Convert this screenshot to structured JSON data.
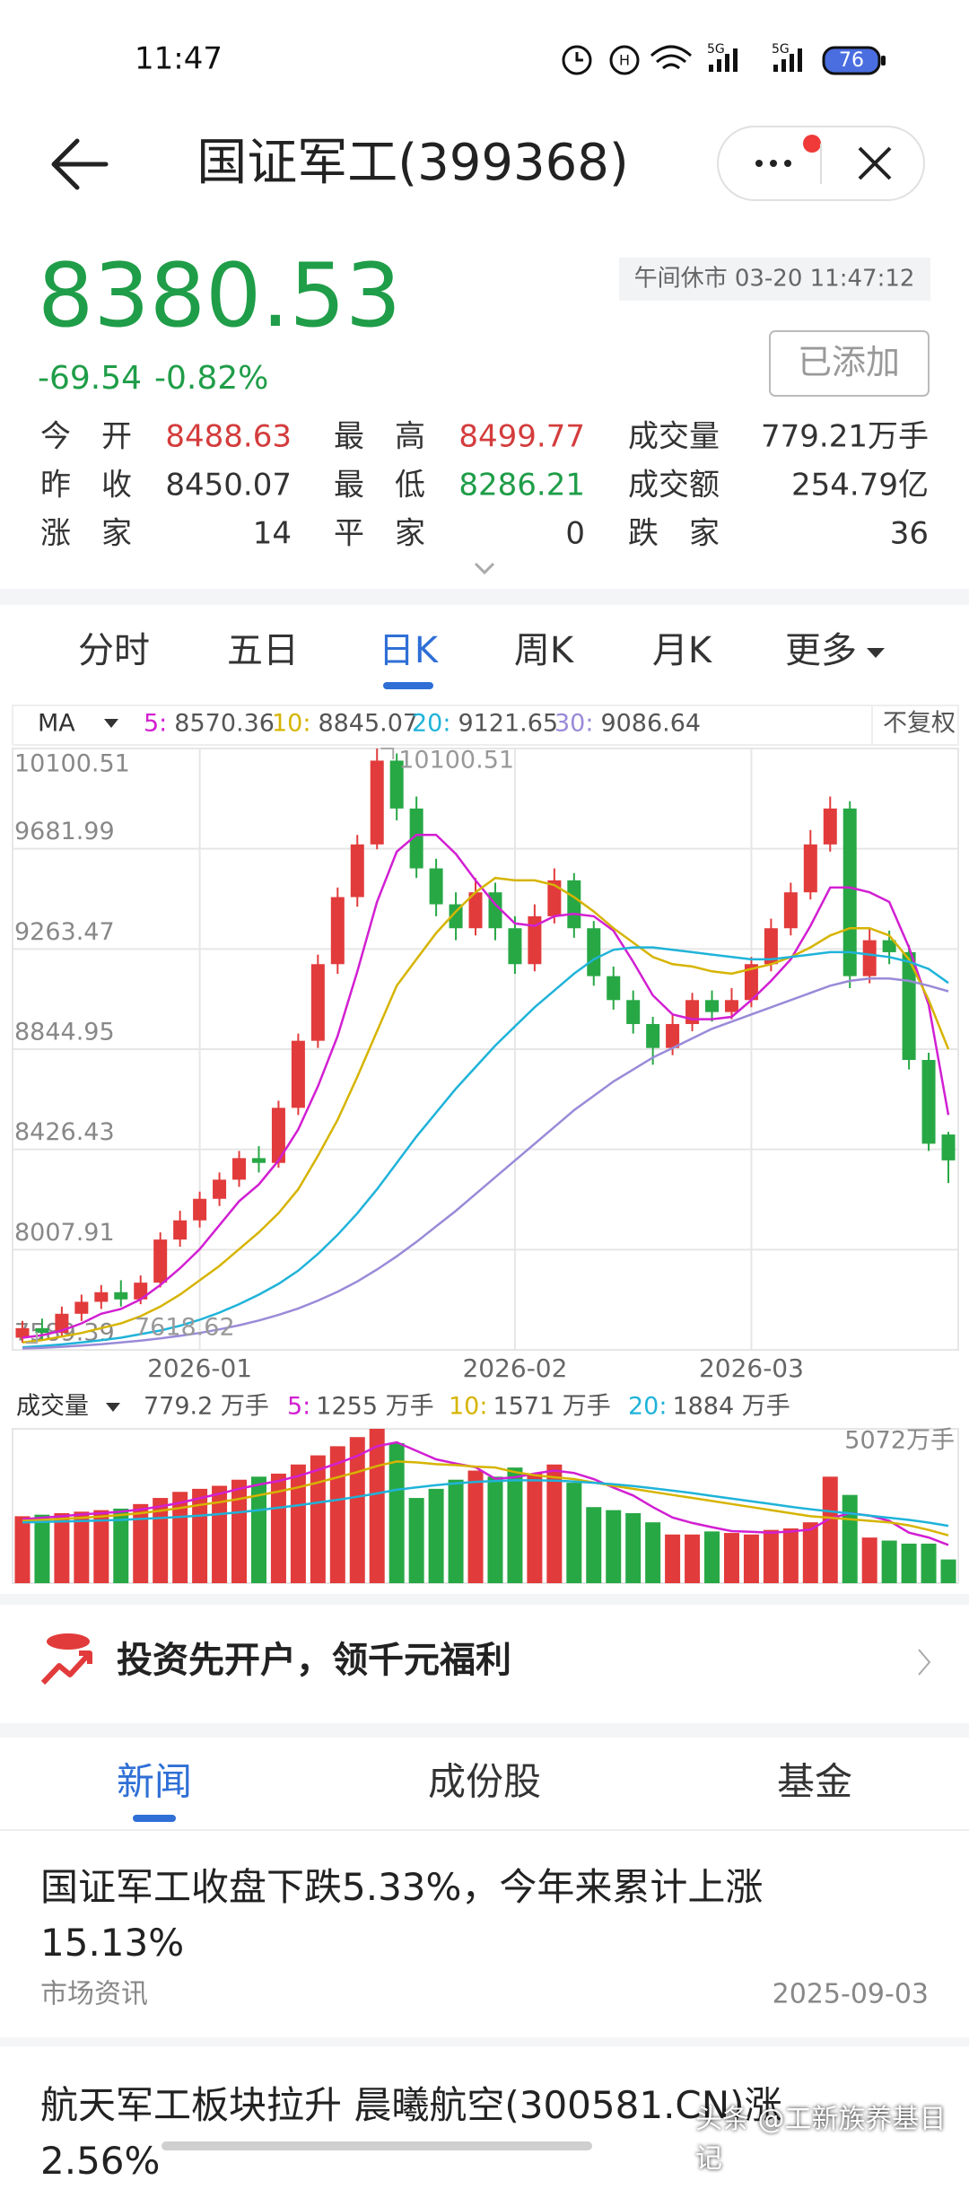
{
  "status_bar": {
    "time": "11:47",
    "battery": "76"
  },
  "header": {
    "title": "国证军工(399368)"
  },
  "quote": {
    "price": "8380.53",
    "change": "-69.54",
    "change_pct": "-0.82%",
    "market_status": "午间休市 03-20 11:47:12",
    "added_button": "已添加",
    "stats": [
      {
        "label": "今开",
        "value": "8488.63",
        "color": "#d43c3c"
      },
      {
        "label": "最高",
        "value": "8499.77",
        "color": "#d43c3c"
      },
      {
        "label": "成交量",
        "value": "779.21万手",
        "color": "#333333"
      },
      {
        "label": "昨收",
        "value": "8450.07",
        "color": "#333333"
      },
      {
        "label": "最低",
        "value": "8286.21",
        "color": "#1f9d48"
      },
      {
        "label": "成交额",
        "value": "254.79亿",
        "color": "#333333"
      },
      {
        "label": "涨家",
        "value": "14",
        "color": "#333333"
      },
      {
        "label": "平家",
        "value": "0",
        "color": "#333333"
      },
      {
        "label": "跌家",
        "value": "36",
        "color": "#333333"
      }
    ]
  },
  "period_tabs": [
    "分时",
    "五日",
    "日K",
    "周K",
    "月K",
    "更多"
  ],
  "chart_data": {
    "type": "candlestick",
    "indicator": "MA",
    "adjust": "不复权",
    "up_color": "#e23b3b",
    "down_color": "#27a845",
    "categories": [
      null,
      null,
      null,
      null,
      null,
      null,
      null,
      null,
      null,
      "2026-01",
      null,
      null,
      null,
      null,
      null,
      null,
      null,
      null,
      null,
      null,
      null,
      null,
      null,
      null,
      null,
      "2026-02",
      null,
      null,
      null,
      null,
      null,
      null,
      null,
      null,
      null,
      null,
      null,
      "2026-03",
      null,
      null,
      null,
      null,
      null,
      null,
      null,
      null,
      null,
      null
    ],
    "open": [
      7640,
      7680,
      7660,
      7740,
      7790,
      7830,
      7800,
      7870,
      8050,
      8130,
      8220,
      8300,
      8390,
      8370,
      8600,
      8880,
      9200,
      9480,
      9700,
      10050,
      9850,
      9600,
      9450,
      9350,
      9500,
      9350,
      9200,
      9400,
      9550,
      9350,
      9150,
      9050,
      8950,
      8850,
      8950,
      9050,
      9000,
      9050,
      9200,
      9350,
      9500,
      9700,
      9850,
      9150,
      9300,
      9250,
      8800,
      8488.63
    ],
    "high": [
      7710,
      7720,
      7770,
      7820,
      7860,
      7880,
      7900,
      8080,
      8170,
      8250,
      8330,
      8420,
      8440,
      8630,
      8910,
      9240,
      9520,
      9740,
      10100.51,
      10080,
      9900,
      9640,
      9500,
      9560,
      9540,
      9400,
      9450,
      9600,
      9580,
      9380,
      9190,
      9090,
      8980,
      8990,
      9080,
      9090,
      9100,
      9230,
      9390,
      9540,
      9760,
      9900,
      9880,
      9350,
      9340,
      9280,
      8830,
      8499.77
    ],
    "low": [
      7618.62,
      7630,
      7640,
      7710,
      7760,
      7770,
      7780,
      7850,
      8020,
      8100,
      8190,
      8270,
      8330,
      8350,
      8570,
      8850,
      9160,
      9440,
      9680,
      9800,
      9560,
      9400,
      9300,
      9320,
      9300,
      9160,
      9170,
      9370,
      9310,
      9110,
      9010,
      8910,
      8780,
      8820,
      8920,
      8960,
      8970,
      9020,
      9170,
      9320,
      9470,
      9670,
      9100,
      9120,
      9200,
      8760,
      8420,
      8286.21
    ],
    "close": [
      7680,
      7660,
      7740,
      7790,
      7830,
      7800,
      7870,
      8050,
      8130,
      8220,
      8300,
      8390,
      8370,
      8600,
      8880,
      9200,
      9480,
      9700,
      10050,
      9850,
      9600,
      9450,
      9350,
      9500,
      9350,
      9200,
      9400,
      9550,
      9350,
      9150,
      9050,
      8950,
      8850,
      8950,
      9050,
      9000,
      9050,
      9200,
      9350,
      9500,
      9700,
      9850,
      9150,
      9300,
      9250,
      8800,
      8450.07,
      8380.53
    ],
    "ylim": [
      7589.39,
      10100.51
    ],
    "yticks": [
      10100.51,
      9681.99,
      9263.47,
      8844.95,
      8426.43,
      8007.91,
      7589.39
    ],
    "grid": true,
    "series": [
      {
        "name": "5:",
        "color": "#d21fd2",
        "values": [
          7640,
          7650,
          7670,
          7700,
          7740,
          7760,
          7800,
          7860,
          7930,
          8010,
          8110,
          8210,
          8280,
          8380,
          8510,
          8690,
          8900,
          9170,
          9460,
          9670,
          9740,
          9740,
          9660,
          9550,
          9450,
          9370,
          9360,
          9400,
          9410,
          9400,
          9340,
          9210,
          9070,
          8990,
          8970,
          8970,
          8980,
          9050,
          9130,
          9220,
          9360,
          9520,
          9520,
          9500,
          9460,
          9270,
          9030,
          8570.36
        ]
      },
      {
        "name": "10:",
        "color": "#d6b400",
        "values": [
          7620,
          7630,
          7645,
          7660,
          7680,
          7700,
          7730,
          7770,
          7820,
          7880,
          7940,
          8010,
          8080,
          8160,
          8260,
          8400,
          8550,
          8730,
          8920,
          9110,
          9220,
          9330,
          9420,
          9500,
          9560,
          9550,
          9550,
          9530,
          9480,
          9420,
          9350,
          9290,
          9230,
          9200,
          9190,
          9170,
          9160,
          9180,
          9200,
          9230,
          9270,
          9320,
          9350,
          9350,
          9320,
          9220,
          9050,
          8845.07
        ]
      },
      {
        "name": "20:",
        "color": "#1fb3d9",
        "values": [
          7600,
          7605,
          7612,
          7620,
          7630,
          7640,
          7655,
          7670,
          7690,
          7715,
          7745,
          7780,
          7820,
          7865,
          7920,
          7990,
          8070,
          8160,
          8260,
          8370,
          8480,
          8580,
          8680,
          8770,
          8860,
          8940,
          9020,
          9090,
          9160,
          9220,
          9260,
          9270,
          9270,
          9260,
          9250,
          9240,
          9230,
          9220,
          9220,
          9230,
          9240,
          9250,
          9250,
          9240,
          9230,
          9210,
          9180,
          9121.65
        ]
      },
      {
        "name": "30:",
        "color": "#9a8ad8",
        "values": [
          7595,
          7598,
          7602,
          7607,
          7613,
          7620,
          7628,
          7637,
          7648,
          7660,
          7675,
          7692,
          7712,
          7735,
          7762,
          7795,
          7832,
          7875,
          7925,
          7980,
          8040,
          8105,
          8170,
          8240,
          8310,
          8380,
          8450,
          8520,
          8590,
          8650,
          8710,
          8760,
          8810,
          8850,
          8890,
          8930,
          8960,
          8990,
          9020,
          9050,
          9080,
          9110,
          9130,
          9140,
          9140,
          9130,
          9110,
          9086.64
        ]
      }
    ],
    "volume": {
      "label": "成交量",
      "values": [
        2200,
        2250,
        2300,
        2350,
        2400,
        2450,
        2600,
        2800,
        3000,
        3100,
        3200,
        3400,
        3500,
        3600,
        3900,
        4200,
        4500,
        4800,
        5072,
        4600,
        2800,
        3100,
        3400,
        3700,
        3500,
        3800,
        3600,
        3900,
        3300,
        2500,
        2400,
        2300,
        2000,
        1600,
        1600,
        1700,
        1650,
        1600,
        1750,
        1800,
        2000,
        3500,
        2900,
        1500,
        1400,
        1300,
        1300,
        779.2
      ],
      "current_label": "779.2 万手",
      "ylim": [
        0,
        5072
      ],
      "yticks": [
        {
          "value": 5072,
          "label": "5072万手"
        }
      ],
      "series": [
        {
          "name": "5:",
          "color": "#d21fd2",
          "value_label": "1255 万手",
          "values": [
            2100,
            2150,
            2200,
            2260,
            2300,
            2350,
            2420,
            2520,
            2640,
            2790,
            2940,
            3100,
            3240,
            3360,
            3520,
            3720,
            3940,
            4180,
            4500,
            4630,
            4350,
            4070,
            3930,
            3810,
            3430,
            3480,
            3600,
            3700,
            3620,
            3420,
            3140,
            2880,
            2500,
            2160,
            1980,
            1840,
            1710,
            1690,
            1660,
            1700,
            1760,
            2130,
            2300,
            2220,
            2050,
            1660,
            1500,
            1255
          ]
        },
        {
          "name": "10:",
          "color": "#d6b400",
          "value_label": "1571 万手",
          "values": [
            2050,
            2080,
            2110,
            2150,
            2190,
            2240,
            2300,
            2380,
            2470,
            2570,
            2660,
            2770,
            2890,
            3010,
            3150,
            3310,
            3480,
            3650,
            3850,
            4000,
            3970,
            3910,
            3880,
            3830,
            3800,
            3650,
            3550,
            3480,
            3420,
            3310,
            3200,
            3100,
            3000,
            2900,
            2800,
            2700,
            2600,
            2500,
            2400,
            2300,
            2200,
            2150,
            2100,
            2050,
            2000,
            1900,
            1750,
            1571
          ]
        },
        {
          "name": "20:",
          "color": "#1fb3d9",
          "value_label": "1884 万手",
          "values": [
            2000,
            2010,
            2025,
            2040,
            2060,
            2080,
            2110,
            2140,
            2180,
            2220,
            2270,
            2330,
            2400,
            2480,
            2560,
            2650,
            2740,
            2840,
            2950,
            3070,
            3150,
            3220,
            3280,
            3330,
            3360,
            3380,
            3380,
            3370,
            3340,
            3300,
            3250,
            3190,
            3120,
            3040,
            2960,
            2870,
            2780,
            2690,
            2600,
            2510,
            2430,
            2360,
            2290,
            2220,
            2150,
            2080,
            1990,
            1884
          ]
        }
      ]
    }
  },
  "promo": {
    "text": "投资先开户，领千元福利"
  },
  "news_tabs": [
    "新闻",
    "成份股",
    "基金"
  ],
  "news": [
    {
      "title": "国证军工收盘下跌5.33%，今年来累计上涨15.13%",
      "source": "市场资讯",
      "date": "2025-09-03"
    },
    {
      "title": "航天军工板块拉升 晨曦航空(300581.CN)涨2.56%"
    }
  ],
  "watermark": "头条 @工新族养基日记"
}
